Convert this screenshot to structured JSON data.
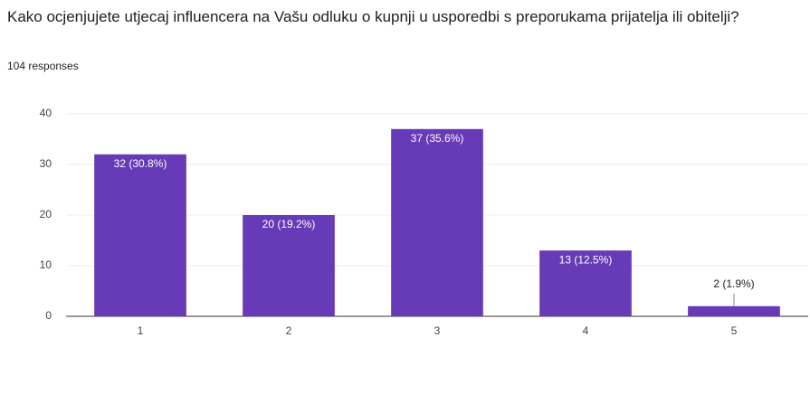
{
  "chart_data": {
    "type": "bar",
    "title": "Kako ocjenjujete utjecaj influencera na Vašu odluku o kupnji u usporedbi s preporukama prijatelja ili obitelji?",
    "subtitle": "104 responses",
    "categories": [
      "1",
      "2",
      "3",
      "4",
      "5"
    ],
    "values": [
      32,
      20,
      37,
      13,
      2
    ],
    "value_labels": [
      "32 (30.8%)",
      "20 (19.2%)",
      "37 (35.6%)",
      "13 (12.5%)",
      "2 (1.9%)"
    ],
    "color": "#673ab7",
    "ylim": [
      0,
      40
    ],
    "yticks": [
      0,
      10,
      20,
      30,
      40
    ],
    "grid": true
  }
}
